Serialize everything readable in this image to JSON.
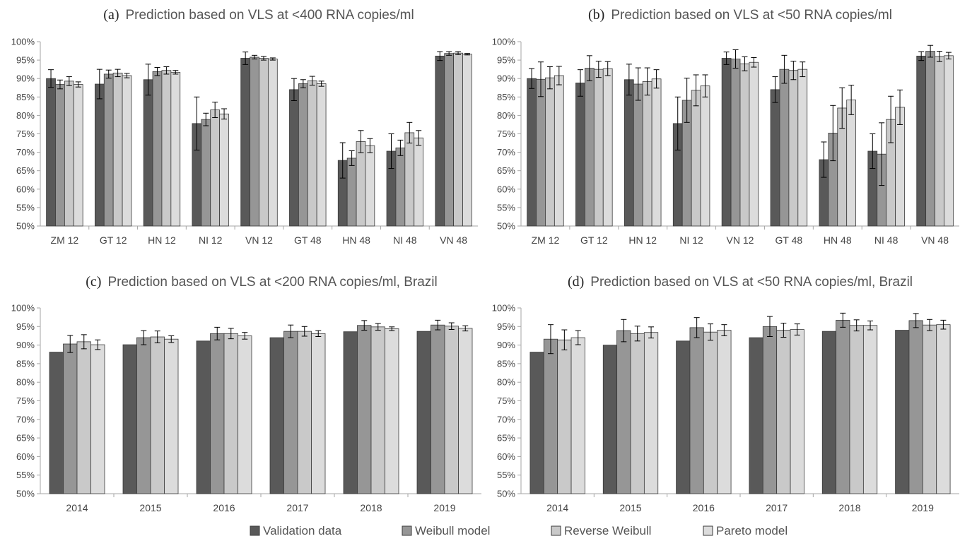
{
  "colors": {
    "validation": "#595959",
    "weibull": "#969696",
    "reverse_weibull": "#c9c9c9",
    "pareto": "#dcdcdc",
    "axis": "#a6a6a6",
    "error_bar": "#000000"
  },
  "legend": {
    "items": [
      {
        "label": "Validation data",
        "color": "#595959"
      },
      {
        "label": "Weibull model",
        "color": "#969696"
      },
      {
        "label": "Reverse Weibull",
        "color": "#c9c9c9"
      },
      {
        "label": "Pareto model",
        "color": "#dcdcdc"
      }
    ]
  },
  "chart_data": [
    {
      "type": "bar",
      "panel_label": "(a)",
      "title": "Prediction based on VLS at <400 RNA copies/ml",
      "categories": [
        "ZM 12",
        "GT 12",
        "HN 12",
        "NI 12",
        "VN 12",
        "GT 48",
        "HN 48",
        "NI 48",
        "VN 48"
      ],
      "ylim": [
        0.5,
        1.0
      ],
      "yticks": [
        "50%",
        "55%",
        "60%",
        "65%",
        "70%",
        "75%",
        "80%",
        "85%",
        "90%",
        "95%",
        "100%"
      ],
      "series": [
        {
          "name": "Validation data",
          "values": [
            0.9,
            0.885,
            0.897,
            0.778,
            0.955,
            0.87,
            0.678,
            0.703,
            0.961
          ],
          "errors": [
            0.024,
            0.04,
            0.042,
            0.072,
            0.017,
            0.03,
            0.048,
            0.047,
            0.012
          ]
        },
        {
          "name": "Weibull model",
          "values": [
            0.884,
            0.912,
            0.919,
            0.789,
            0.958,
            0.886,
            0.684,
            0.712,
            0.968
          ],
          "errors": [
            0.012,
            0.011,
            0.011,
            0.017,
            0.005,
            0.011,
            0.02,
            0.021,
            0.005
          ]
        },
        {
          "name": "Reverse Weibull",
          "values": [
            0.893,
            0.915,
            0.922,
            0.815,
            0.955,
            0.894,
            0.729,
            0.753,
            0.969
          ],
          "errors": [
            0.012,
            0.01,
            0.01,
            0.021,
            0.005,
            0.012,
            0.03,
            0.028,
            0.004
          ]
        },
        {
          "name": "Pareto model",
          "values": [
            0.884,
            0.908,
            0.917,
            0.804,
            0.953,
            0.886,
            0.718,
            0.739,
            0.966
          ],
          "errors": [
            0.007,
            0.006,
            0.005,
            0.014,
            0.003,
            0.007,
            0.019,
            0.02,
            0.002
          ]
        }
      ]
    },
    {
      "type": "bar",
      "panel_label": "(b)",
      "title": "Prediction based on VLS at <50 RNA copies/ml",
      "categories": [
        "ZM 12",
        "GT 12",
        "HN 12",
        "NI 12",
        "VN 12",
        "GT 48",
        "HN 48",
        "NI 48",
        "VN 48"
      ],
      "ylim": [
        0.5,
        1.0
      ],
      "yticks": [
        "50%",
        "55%",
        "60%",
        "65%",
        "70%",
        "75%",
        "80%",
        "85%",
        "90%",
        "95%",
        "100%"
      ],
      "series": [
        {
          "name": "Validation data",
          "values": [
            0.9,
            0.888,
            0.897,
            0.778,
            0.955,
            0.87,
            0.68,
            0.703,
            0.961
          ],
          "errors": [
            0.027,
            0.036,
            0.042,
            0.072,
            0.017,
            0.035,
            0.048,
            0.047,
            0.012
          ]
        },
        {
          "name": "Weibull model",
          "values": [
            0.898,
            0.928,
            0.885,
            0.841,
            0.953,
            0.925,
            0.752,
            0.695,
            0.974
          ],
          "errors": [
            0.047,
            0.034,
            0.044,
            0.06,
            0.025,
            0.038,
            0.075,
            0.085,
            0.016
          ]
        },
        {
          "name": "Reverse Weibull",
          "values": [
            0.902,
            0.925,
            0.892,
            0.868,
            0.94,
            0.922,
            0.82,
            0.789,
            0.96
          ],
          "errors": [
            0.03,
            0.022,
            0.037,
            0.042,
            0.019,
            0.025,
            0.055,
            0.063,
            0.014
          ]
        },
        {
          "name": "Pareto model",
          "values": [
            0.908,
            0.927,
            0.899,
            0.88,
            0.944,
            0.925,
            0.842,
            0.822,
            0.962
          ],
          "errors": [
            0.025,
            0.019,
            0.025,
            0.03,
            0.013,
            0.02,
            0.04,
            0.047,
            0.009
          ]
        }
      ]
    },
    {
      "type": "bar",
      "panel_label": "(c)",
      "title": "Prediction based on VLS at <200 RNA copies/ml, Brazil",
      "categories": [
        "2014",
        "2015",
        "2016",
        "2017",
        "2018",
        "2019"
      ],
      "ylim": [
        0.5,
        1.0
      ],
      "yticks": [
        "50%",
        "55%",
        "60%",
        "65%",
        "70%",
        "75%",
        "80%",
        "85%",
        "90%",
        "95%",
        "100%"
      ],
      "series": [
        {
          "name": "Validation data",
          "values": [
            0.881,
            0.901,
            0.911,
            0.92,
            0.936,
            0.937
          ],
          "errors": [
            0,
            0,
            0,
            0,
            0,
            0
          ]
        },
        {
          "name": "Weibull model",
          "values": [
            0.903,
            0.92,
            0.931,
            0.937,
            0.953,
            0.954
          ],
          "errors": [
            0.023,
            0.019,
            0.017,
            0.017,
            0.013,
            0.013
          ]
        },
        {
          "name": "Reverse Weibull",
          "values": [
            0.909,
            0.922,
            0.931,
            0.937,
            0.949,
            0.951
          ],
          "errors": [
            0.019,
            0.016,
            0.014,
            0.013,
            0.009,
            0.009
          ]
        },
        {
          "name": "Pareto model",
          "values": [
            0.901,
            0.916,
            0.925,
            0.931,
            0.944,
            0.945
          ],
          "errors": [
            0.013,
            0.009,
            0.009,
            0.008,
            0.005,
            0.007
          ]
        }
      ]
    },
    {
      "type": "bar",
      "panel_label": "(d)",
      "title": "Prediction based on VLS at <50 RNA copies/ml, Brazil",
      "categories": [
        "2014",
        "2015",
        "2016",
        "2017",
        "2018",
        "2019"
      ],
      "ylim": [
        0.5,
        1.0
      ],
      "yticks": [
        "50%",
        "55%",
        "60%",
        "65%",
        "70%",
        "75%",
        "80%",
        "85%",
        "90%",
        "95%",
        "100%"
      ],
      "series": [
        {
          "name": "Validation data",
          "values": [
            0.881,
            0.9,
            0.911,
            0.92,
            0.937,
            0.94
          ],
          "errors": [
            0,
            0,
            0,
            0,
            0,
            0
          ]
        },
        {
          "name": "Weibull model",
          "values": [
            0.916,
            0.939,
            0.947,
            0.95,
            0.967,
            0.966
          ],
          "errors": [
            0.039,
            0.03,
            0.027,
            0.027,
            0.019,
            0.019
          ]
        },
        {
          "name": "Reverse Weibull",
          "values": [
            0.914,
            0.931,
            0.935,
            0.94,
            0.953,
            0.954
          ],
          "errors": [
            0.027,
            0.02,
            0.022,
            0.019,
            0.015,
            0.015
          ]
        },
        {
          "name": "Pareto model",
          "values": [
            0.92,
            0.934,
            0.94,
            0.942,
            0.953,
            0.955
          ],
          "errors": [
            0.019,
            0.015,
            0.015,
            0.015,
            0.012,
            0.012
          ]
        }
      ]
    }
  ]
}
